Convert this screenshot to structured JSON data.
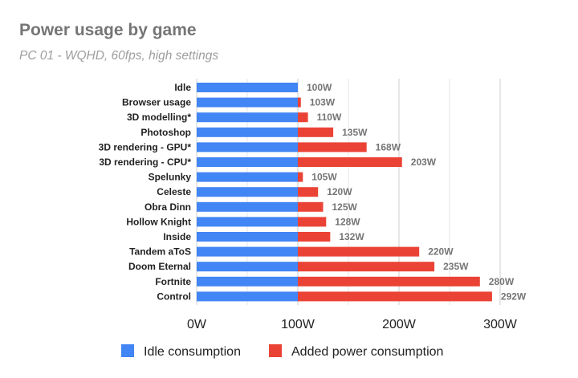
{
  "chart_data": {
    "type": "bar",
    "orientation": "horizontal",
    "stacked": true,
    "title": "Power usage by game",
    "subtitle": "PC 01 - WQHD, 60fps, high settings",
    "categories": [
      "Idle",
      "Browser usage",
      "3D modelling*",
      "Photoshop",
      "3D rendering - GPU*",
      "3D rendering - CPU*",
      "Spelunky",
      "Celeste",
      "Obra Dinn",
      "Hollow Knight",
      "Inside",
      "Tandem aToS",
      "Doom Eternal",
      "Fortnite",
      "Control"
    ],
    "series": [
      {
        "name": "Idle consumption",
        "color": "#4285f4",
        "values": [
          100,
          100,
          100,
          100,
          100,
          100,
          100,
          100,
          100,
          100,
          100,
          100,
          100,
          100,
          100
        ]
      },
      {
        "name": "Added power consumption",
        "color": "#ea4335",
        "values": [
          0,
          3,
          10,
          35,
          68,
          103,
          5,
          20,
          25,
          28,
          32,
          120,
          135,
          180,
          192
        ]
      }
    ],
    "data_labels": [
      "100W",
      "103W",
      "110W",
      "135W",
      "168W",
      "203W",
      "105W",
      "120W",
      "125W",
      "128W",
      "132W",
      "220W",
      "235W",
      "280W",
      "292W"
    ],
    "xlim": [
      0,
      300
    ],
    "xticks": [
      0,
      100,
      200,
      300
    ],
    "xtick_labels": [
      "0W",
      "100W",
      "200W",
      "300W"
    ],
    "grid": true,
    "legend_position": "bottom"
  }
}
